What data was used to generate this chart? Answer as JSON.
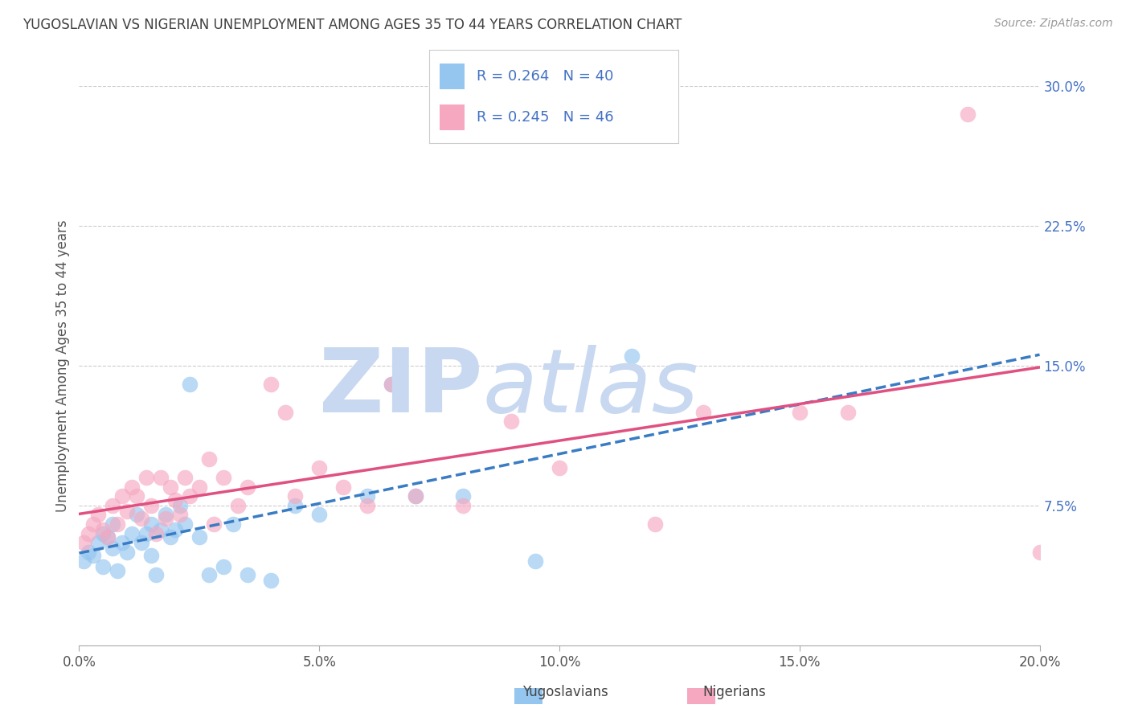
{
  "title": "YUGOSLAVIAN VS NIGERIAN UNEMPLOYMENT AMONG AGES 35 TO 44 YEARS CORRELATION CHART",
  "source": "Source: ZipAtlas.com",
  "ylabel": "Unemployment Among Ages 35 to 44 years",
  "xlim": [
    0.0,
    0.2
  ],
  "ylim": [
    0.0,
    0.3
  ],
  "xticks": [
    0.0,
    0.05,
    0.1,
    0.15,
    0.2
  ],
  "yticks": [
    0.0,
    0.075,
    0.15,
    0.225,
    0.3
  ],
  "xtick_labels": [
    "0.0%",
    "5.0%",
    "10.0%",
    "15.0%",
    "20.0%"
  ],
  "ytick_labels": [
    "",
    "7.5%",
    "15.0%",
    "22.5%",
    "30.0%"
  ],
  "series1_label": "Yugoslavians",
  "series2_label": "Nigerians",
  "color1": "#94C6F0",
  "color2": "#F5A8C0",
  "trendline1_color": "#3A7CC4",
  "trendline2_color": "#E05080",
  "background_color": "#ffffff",
  "grid_color": "#cccccc",
  "title_color": "#404040",
  "axis_label_color": "#555555",
  "tick_color_y": "#4472C4",
  "tick_color_x": "#555555",
  "watermark_color": "#c8d8f0",
  "legend_r1": "R = 0.264",
  "legend_n1": "N = 40",
  "legend_r2": "R = 0.245",
  "legend_n2": "N = 46",
  "yug_x": [
    0.001,
    0.002,
    0.003,
    0.004,
    0.005,
    0.005,
    0.006,
    0.007,
    0.007,
    0.008,
    0.009,
    0.01,
    0.011,
    0.012,
    0.013,
    0.014,
    0.015,
    0.015,
    0.016,
    0.017,
    0.018,
    0.019,
    0.02,
    0.021,
    0.022,
    0.023,
    0.025,
    0.027,
    0.03,
    0.032,
    0.035,
    0.04,
    0.045,
    0.05,
    0.06,
    0.065,
    0.07,
    0.08,
    0.095,
    0.115
  ],
  "yug_y": [
    0.045,
    0.05,
    0.048,
    0.055,
    0.042,
    0.06,
    0.058,
    0.052,
    0.065,
    0.04,
    0.055,
    0.05,
    0.06,
    0.07,
    0.055,
    0.06,
    0.065,
    0.048,
    0.038,
    0.062,
    0.07,
    0.058,
    0.062,
    0.075,
    0.065,
    0.14,
    0.058,
    0.038,
    0.042,
    0.065,
    0.038,
    0.035,
    0.075,
    0.07,
    0.08,
    0.14,
    0.08,
    0.08,
    0.045,
    0.155
  ],
  "nig_x": [
    0.001,
    0.002,
    0.003,
    0.004,
    0.005,
    0.006,
    0.007,
    0.008,
    0.009,
    0.01,
    0.011,
    0.012,
    0.013,
    0.014,
    0.015,
    0.016,
    0.017,
    0.018,
    0.019,
    0.02,
    0.021,
    0.022,
    0.023,
    0.025,
    0.027,
    0.028,
    0.03,
    0.033,
    0.035,
    0.04,
    0.043,
    0.045,
    0.05,
    0.055,
    0.06,
    0.065,
    0.07,
    0.08,
    0.09,
    0.1,
    0.12,
    0.13,
    0.15,
    0.16,
    0.185,
    0.2
  ],
  "nig_y": [
    0.055,
    0.06,
    0.065,
    0.07,
    0.062,
    0.058,
    0.075,
    0.065,
    0.08,
    0.072,
    0.085,
    0.08,
    0.068,
    0.09,
    0.075,
    0.06,
    0.09,
    0.068,
    0.085,
    0.078,
    0.07,
    0.09,
    0.08,
    0.085,
    0.1,
    0.065,
    0.09,
    0.075,
    0.085,
    0.14,
    0.125,
    0.08,
    0.095,
    0.085,
    0.075,
    0.14,
    0.08,
    0.075,
    0.12,
    0.095,
    0.065,
    0.125,
    0.125,
    0.125,
    0.285,
    0.05
  ]
}
